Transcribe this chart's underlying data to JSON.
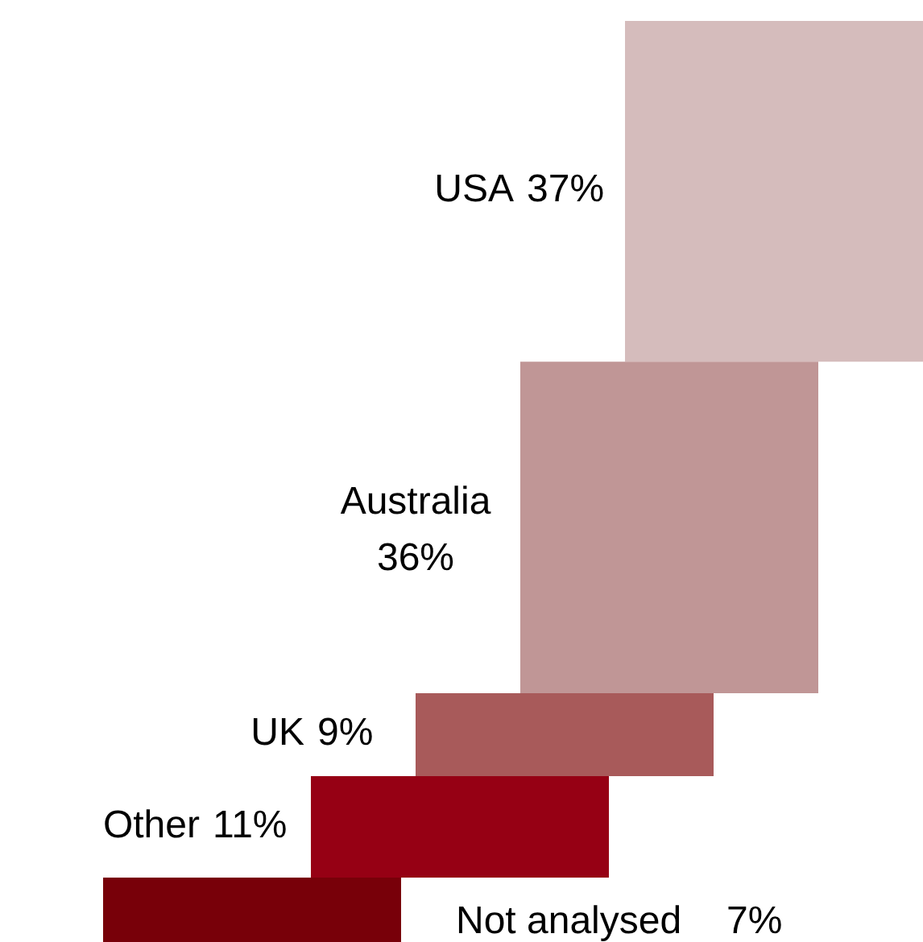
{
  "chart_data": {
    "type": "other",
    "categories": [
      "USA",
      "Australia",
      "UK",
      "Other",
      "Not analysed"
    ],
    "values": [
      37,
      36,
      9,
      11,
      7
    ],
    "value_labels": [
      "37%",
      "36%",
      "9%",
      "11%",
      "7%"
    ],
    "colors": [
      "#d5bcbc",
      "#c09696",
      "#a85a5a",
      "#960014",
      "#780009"
    ]
  }
}
